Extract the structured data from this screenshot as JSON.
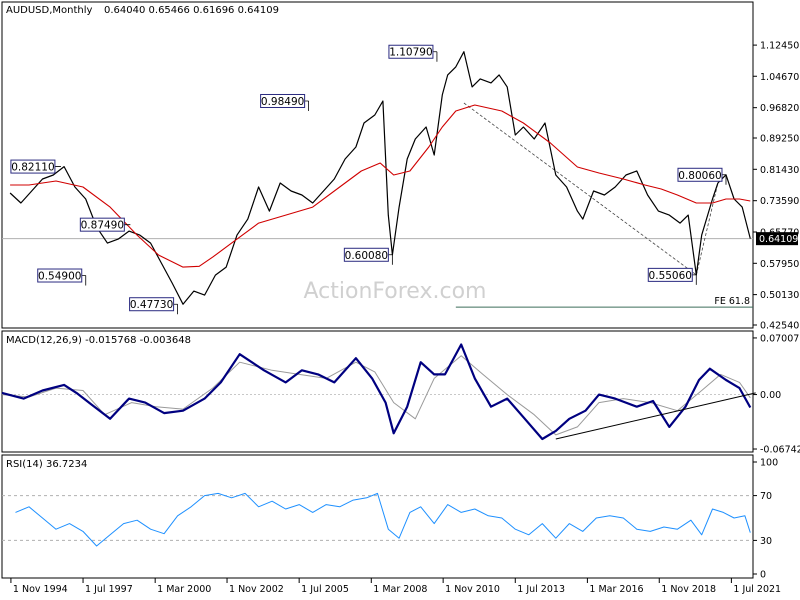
{
  "chart_data": [
    {
      "type": "line",
      "title": "AUDUSD,Monthly",
      "ohlc": "0.64040 0.65466 0.61696 0.64109",
      "watermark": "ActionForex.com",
      "ylim": [
        0.4254,
        1.1822
      ],
      "y_ticks": [
        "1.12450",
        "1.04670",
        "0.96820",
        "0.89250",
        "0.81430",
        "0.73590",
        "0.65770",
        "0.57950",
        "0.50130",
        "0.42540"
      ],
      "current_price": 0.64109,
      "current_label": "0.64109",
      "x_tick_labels": [
        "1 Nov 1994",
        "1 Jul 1997",
        "1 Mar 2000",
        "1 Nov 2002",
        "1 Jul 2005",
        "1 Mar 2008",
        "1 Nov 2010",
        "1 Jul 2013",
        "1 Mar 2016",
        "1 Nov 2018",
        "1 Jul 2021"
      ],
      "x_ticks": [
        1994.83,
        1997.5,
        2000.17,
        2002.83,
        2005.5,
        2008.17,
        2010.83,
        2013.5,
        2016.17,
        2018.83,
        2021.5
      ],
      "xlim": [
        1994.5,
        2022.3
      ],
      "series": [
        {
          "name": "Price",
          "color": "#000000",
          "x": [
            1994.8,
            1995.2,
            1995.6,
            1996.0,
            1996.4,
            1996.8,
            1997.2,
            1997.6,
            1998.0,
            1998.4,
            1998.8,
            1999.2,
            1999.6,
            2000.0,
            2000.4,
            2000.8,
            2001.2,
            2001.6,
            2002.0,
            2002.4,
            2002.8,
            2003.2,
            2003.6,
            2004.0,
            2004.4,
            2004.8,
            2005.2,
            2005.6,
            2006.0,
            2006.4,
            2006.8,
            2007.2,
            2007.6,
            2007.9,
            2008.3,
            2008.6,
            2008.8,
            2008.95,
            2009.2,
            2009.5,
            2009.8,
            2010.2,
            2010.5,
            2010.8,
            2011.0,
            2011.3,
            2011.6,
            2011.9,
            2012.2,
            2012.6,
            2012.9,
            2013.2,
            2013.5,
            2013.8,
            2014.2,
            2014.6,
            2015.0,
            2015.4,
            2015.8,
            2016.0,
            2016.4,
            2016.8,
            2017.2,
            2017.6,
            2018.0,
            2018.4,
            2018.8,
            2019.2,
            2019.6,
            2019.9,
            2020.2,
            2020.4,
            2020.8,
            2021.0,
            2021.3,
            2021.6,
            2021.9,
            2022.2
          ],
          "values": [
            0.755,
            0.73,
            0.76,
            0.79,
            0.8,
            0.8211,
            0.77,
            0.74,
            0.67,
            0.63,
            0.64,
            0.66,
            0.65,
            0.63,
            0.58,
            0.53,
            0.4773,
            0.51,
            0.5,
            0.55,
            0.57,
            0.65,
            0.69,
            0.77,
            0.71,
            0.78,
            0.76,
            0.75,
            0.73,
            0.76,
            0.79,
            0.84,
            0.87,
            0.93,
            0.95,
            0.9849,
            0.7,
            0.6008,
            0.72,
            0.84,
            0.89,
            0.92,
            0.85,
            1.0,
            1.05,
            1.07,
            1.1079,
            1.02,
            1.04,
            1.03,
            1.05,
            1.02,
            0.9,
            0.92,
            0.89,
            0.93,
            0.8,
            0.77,
            0.71,
            0.69,
            0.76,
            0.75,
            0.77,
            0.8,
            0.81,
            0.75,
            0.71,
            0.7,
            0.68,
            0.7,
            0.5506,
            0.65,
            0.74,
            0.78,
            0.8006,
            0.74,
            0.72,
            0.6411
          ]
        },
        {
          "name": "",
          "color": "#d00000",
          "x": [
            1994.8,
            1995.5,
            1996.5,
            1997.5,
            1998.5,
            1999.5,
            2000.3,
            2001.2,
            2001.8,
            2002.3,
            2003.0,
            2004.0,
            2005.0,
            2006.0,
            2007.0,
            2007.8,
            2008.5,
            2009.0,
            2009.6,
            2010.3,
            2010.8,
            2011.3,
            2012.0,
            2013.0,
            2013.8,
            2014.8,
            2015.8,
            2016.6,
            2017.5,
            2018.3,
            2018.9,
            2019.5,
            2020.2,
            2020.8,
            2021.3,
            2021.8,
            2022.2
          ],
          "values": [
            0.775,
            0.775,
            0.785,
            0.77,
            0.72,
            0.65,
            0.6,
            0.57,
            0.572,
            0.595,
            0.63,
            0.68,
            0.7,
            0.72,
            0.77,
            0.81,
            0.83,
            0.8,
            0.81,
            0.87,
            0.92,
            0.96,
            0.975,
            0.96,
            0.93,
            0.88,
            0.82,
            0.805,
            0.79,
            0.775,
            0.765,
            0.75,
            0.73,
            0.73,
            0.74,
            0.74,
            0.735
          ]
        }
      ],
      "annotations": [
        {
          "text": "0.82110",
          "x": 1994.83,
          "y": 0.8211,
          "side": "right"
        },
        {
          "text": "0.87490",
          "x": 1997.4,
          "y": 0.676,
          "side": "right"
        },
        {
          "text": "0.54900",
          "x": 1997.6,
          "y": 0.549,
          "side": "left"
        },
        {
          "text": "0.47730",
          "x": 2001.0,
          "y": 0.4773,
          "side": "left"
        },
        {
          "text": "0.98490",
          "x": 2005.85,
          "y": 0.9849,
          "side": "left"
        },
        {
          "text": "0.60080",
          "x": 2008.95,
          "y": 0.6008,
          "side": "left"
        },
        {
          "text": "1.10790",
          "x": 2010.6,
          "y": 1.1079,
          "side": "left"
        },
        {
          "text": "0.55060",
          "x": 2020.2,
          "y": 0.5506,
          "side": "left"
        },
        {
          "text": "0.80060",
          "x": 2021.3,
          "y": 0.8006,
          "side": "left"
        }
      ],
      "fe_label": "FE 61.8",
      "fe_level": 0.47,
      "fe_x": 2011.3,
      "projection_lines": [
        {
          "x": [
            2011.6,
            2020.2
          ],
          "y": [
            0.98,
            0.5506
          ]
        },
        {
          "x": [
            2020.2,
            2021.0
          ],
          "y": [
            0.5506,
            0.78
          ]
        }
      ]
    },
    {
      "type": "line",
      "title": "MACD(12,26,9) -0.015768 -0.003648",
      "ylim": [
        -0.0674,
        0.07
      ],
      "y_ticks": [
        {
          "v": 0.070071,
          "t": "0.070071"
        },
        {
          "v": 0.0,
          "t": "0.00"
        },
        {
          "v": -0.067423,
          "t": "-0.067423"
        }
      ],
      "series": [
        {
          "name": "MACD",
          "color": "#000080",
          "x": [
            1994.5,
            1995.3,
            1996.0,
            1996.8,
            1997.3,
            1997.8,
            1998.5,
            1999.2,
            1999.8,
            2000.5,
            2001.2,
            2002.0,
            2002.6,
            2003.3,
            2004.2,
            2005.0,
            2005.6,
            2006.2,
            2006.8,
            2007.6,
            2008.2,
            2008.7,
            2009.0,
            2009.5,
            2010.0,
            2010.5,
            2010.9,
            2011.5,
            2012.0,
            2012.6,
            2013.2,
            2013.8,
            2014.5,
            2015.0,
            2015.5,
            2016.1,
            2016.6,
            2017.2,
            2018.0,
            2018.6,
            2019.2,
            2019.8,
            2020.3,
            2020.7,
            2021.3,
            2021.8,
            2022.2
          ],
          "values": [
            0.002,
            -0.005,
            0.005,
            0.012,
            0.001,
            -0.012,
            -0.03,
            -0.005,
            -0.01,
            -0.023,
            -0.02,
            -0.005,
            0.015,
            0.05,
            0.03,
            0.015,
            0.03,
            0.025,
            0.015,
            0.045,
            0.02,
            -0.01,
            -0.048,
            -0.015,
            0.04,
            0.025,
            0.025,
            0.062,
            0.02,
            -0.015,
            -0.005,
            -0.028,
            -0.055,
            -0.045,
            -0.03,
            -0.02,
            0.0,
            -0.005,
            -0.015,
            -0.008,
            -0.04,
            -0.015,
            0.018,
            0.032,
            0.018,
            0.008,
            -0.016
          ]
        },
        {
          "name": "",
          "color": "#9a9a9a",
          "x": [
            1994.5,
            1995.5,
            1996.5,
            1997.5,
            1998.3,
            1999.3,
            2000.2,
            2001.2,
            2002.3,
            2003.3,
            2004.5,
            2005.5,
            2006.5,
            2007.6,
            2008.3,
            2009.0,
            2009.8,
            2010.5,
            2011.5,
            2012.3,
            2013.2,
            2014.2,
            2015.0,
            2015.8,
            2016.6,
            2017.5,
            2018.5,
            2019.5,
            2020.4,
            2021.1,
            2021.8,
            2022.2
          ],
          "values": [
            0.0,
            -0.003,
            0.008,
            0.005,
            -0.025,
            -0.01,
            -0.015,
            -0.018,
            0.008,
            0.04,
            0.03,
            0.025,
            0.02,
            0.04,
            0.028,
            -0.01,
            -0.03,
            0.02,
            0.048,
            0.025,
            0.0,
            -0.025,
            -0.05,
            -0.04,
            -0.01,
            -0.005,
            -0.01,
            -0.02,
            0.005,
            0.025,
            0.015,
            -0.004
          ]
        }
      ],
      "trendline": {
        "x": [
          2015.0,
          2022.4
        ],
        "y": [
          -0.055,
          0.002
        ]
      }
    },
    {
      "type": "line",
      "title": "RSI(14) 36.7234",
      "ylim": [
        0,
        100
      ],
      "y_ticks": [
        100,
        70,
        30,
        0
      ],
      "levels": [
        70,
        30
      ],
      "series": [
        {
          "name": "RSI",
          "color": "#1e90ff",
          "x": [
            1995.0,
            1995.5,
            1996.0,
            1996.5,
            1997.0,
            1997.5,
            1998.0,
            1998.5,
            1999.0,
            1999.5,
            2000.0,
            2000.5,
            2001.0,
            2001.5,
            2002.0,
            2002.5,
            2003.0,
            2003.5,
            2004.0,
            2004.5,
            2005.0,
            2005.5,
            2006.0,
            2006.5,
            2007.0,
            2007.5,
            2008.0,
            2008.4,
            2008.8,
            2009.2,
            2009.6,
            2010.0,
            2010.5,
            2011.0,
            2011.5,
            2012.0,
            2012.5,
            2013.0,
            2013.5,
            2014.0,
            2014.5,
            2015.0,
            2015.5,
            2016.0,
            2016.5,
            2017.0,
            2017.5,
            2018.0,
            2018.5,
            2019.0,
            2019.5,
            2020.0,
            2020.4,
            2020.8,
            2021.2,
            2021.6,
            2022.0,
            2022.2
          ],
          "values": [
            55,
            60,
            50,
            40,
            45,
            38,
            25,
            35,
            45,
            48,
            40,
            36,
            52,
            60,
            70,
            72,
            68,
            72,
            60,
            65,
            58,
            62,
            55,
            62,
            60,
            66,
            68,
            72,
            40,
            32,
            55,
            60,
            45,
            62,
            55,
            58,
            52,
            50,
            40,
            35,
            45,
            32,
            45,
            38,
            50,
            52,
            50,
            40,
            38,
            42,
            40,
            48,
            35,
            58,
            55,
            50,
            52,
            37
          ]
        }
      ]
    }
  ]
}
